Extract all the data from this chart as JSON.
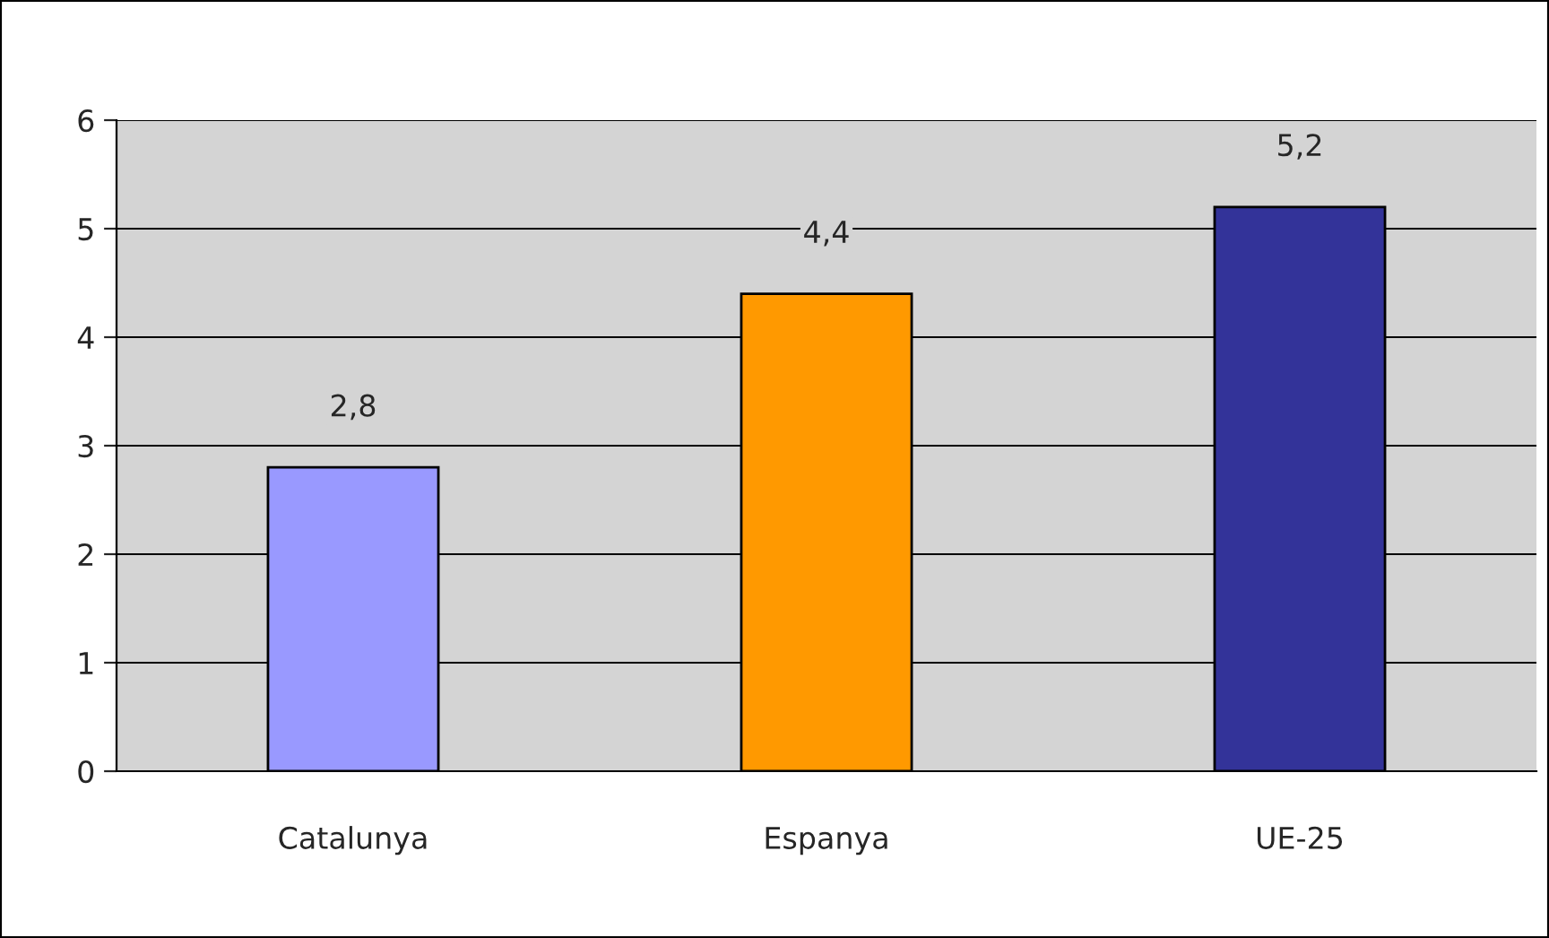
{
  "chart_data": {
    "type": "bar",
    "categories": [
      "Catalunya",
      "Espanya",
      "UE-25"
    ],
    "values": [
      2.8,
      4.4,
      5.2
    ],
    "colors": [
      "#9999ff",
      "#ff9900",
      "#333399"
    ],
    "value_labels": [
      "2,8",
      "4,4",
      "5,2"
    ],
    "ylim": [
      0,
      6
    ],
    "yticks": [
      0,
      1,
      2,
      3,
      4,
      5,
      6
    ],
    "grid": "y",
    "legend": false
  }
}
